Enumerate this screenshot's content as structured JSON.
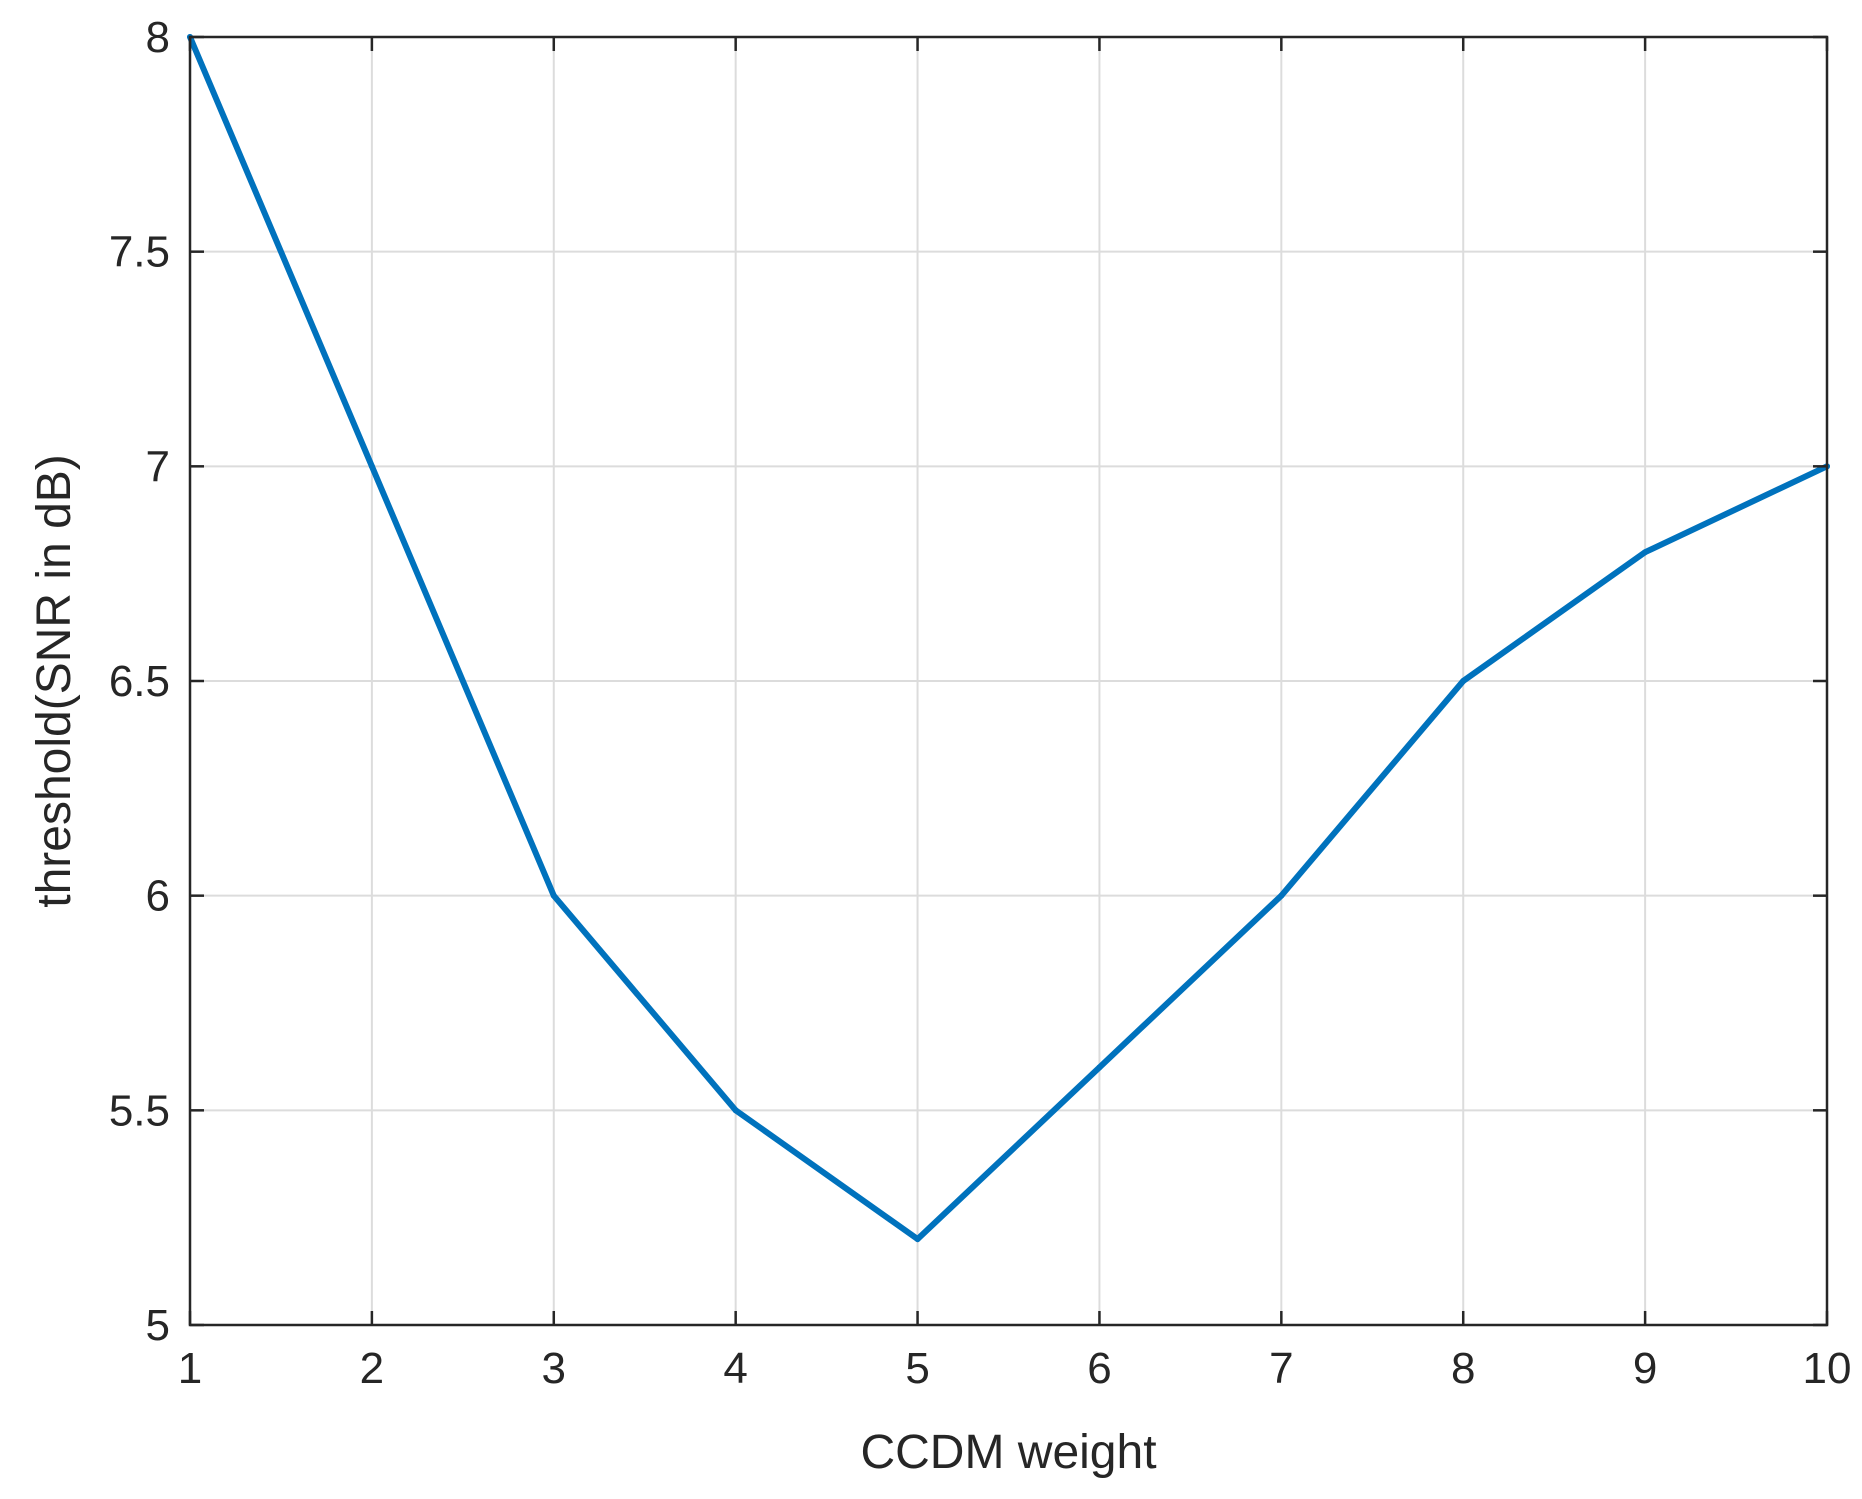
{
  "chart_data": {
    "type": "line",
    "title": "",
    "xlabel": "CCDM weight",
    "ylabel": "threshold(SNR in dB)",
    "xlim": [
      1,
      10
    ],
    "ylim": [
      5,
      8
    ],
    "xticks": [
      1,
      2,
      3,
      4,
      5,
      6,
      7,
      8,
      9,
      10
    ],
    "yticks": [
      5,
      5.5,
      6,
      6.5,
      7,
      7.5,
      8
    ],
    "xtick_labels": [
      "1",
      "2",
      "3",
      "4",
      "5",
      "6",
      "7",
      "8",
      "9",
      "10"
    ],
    "ytick_labels": [
      "5",
      "5.5",
      "6",
      "6.5",
      "7",
      "7.5",
      "8"
    ],
    "grid": true,
    "series": [
      {
        "color": "#0072BD",
        "x": [
          1,
          2,
          3,
          4,
          5,
          6,
          7,
          8,
          9,
          10
        ],
        "y": [
          8,
          7,
          6,
          5.5,
          5.2,
          5.6,
          6,
          6.5,
          6.8,
          7
        ]
      }
    ],
    "colors": {
      "axis": "#262626",
      "grid": "#dcdcdc",
      "background": "#ffffff"
    }
  }
}
